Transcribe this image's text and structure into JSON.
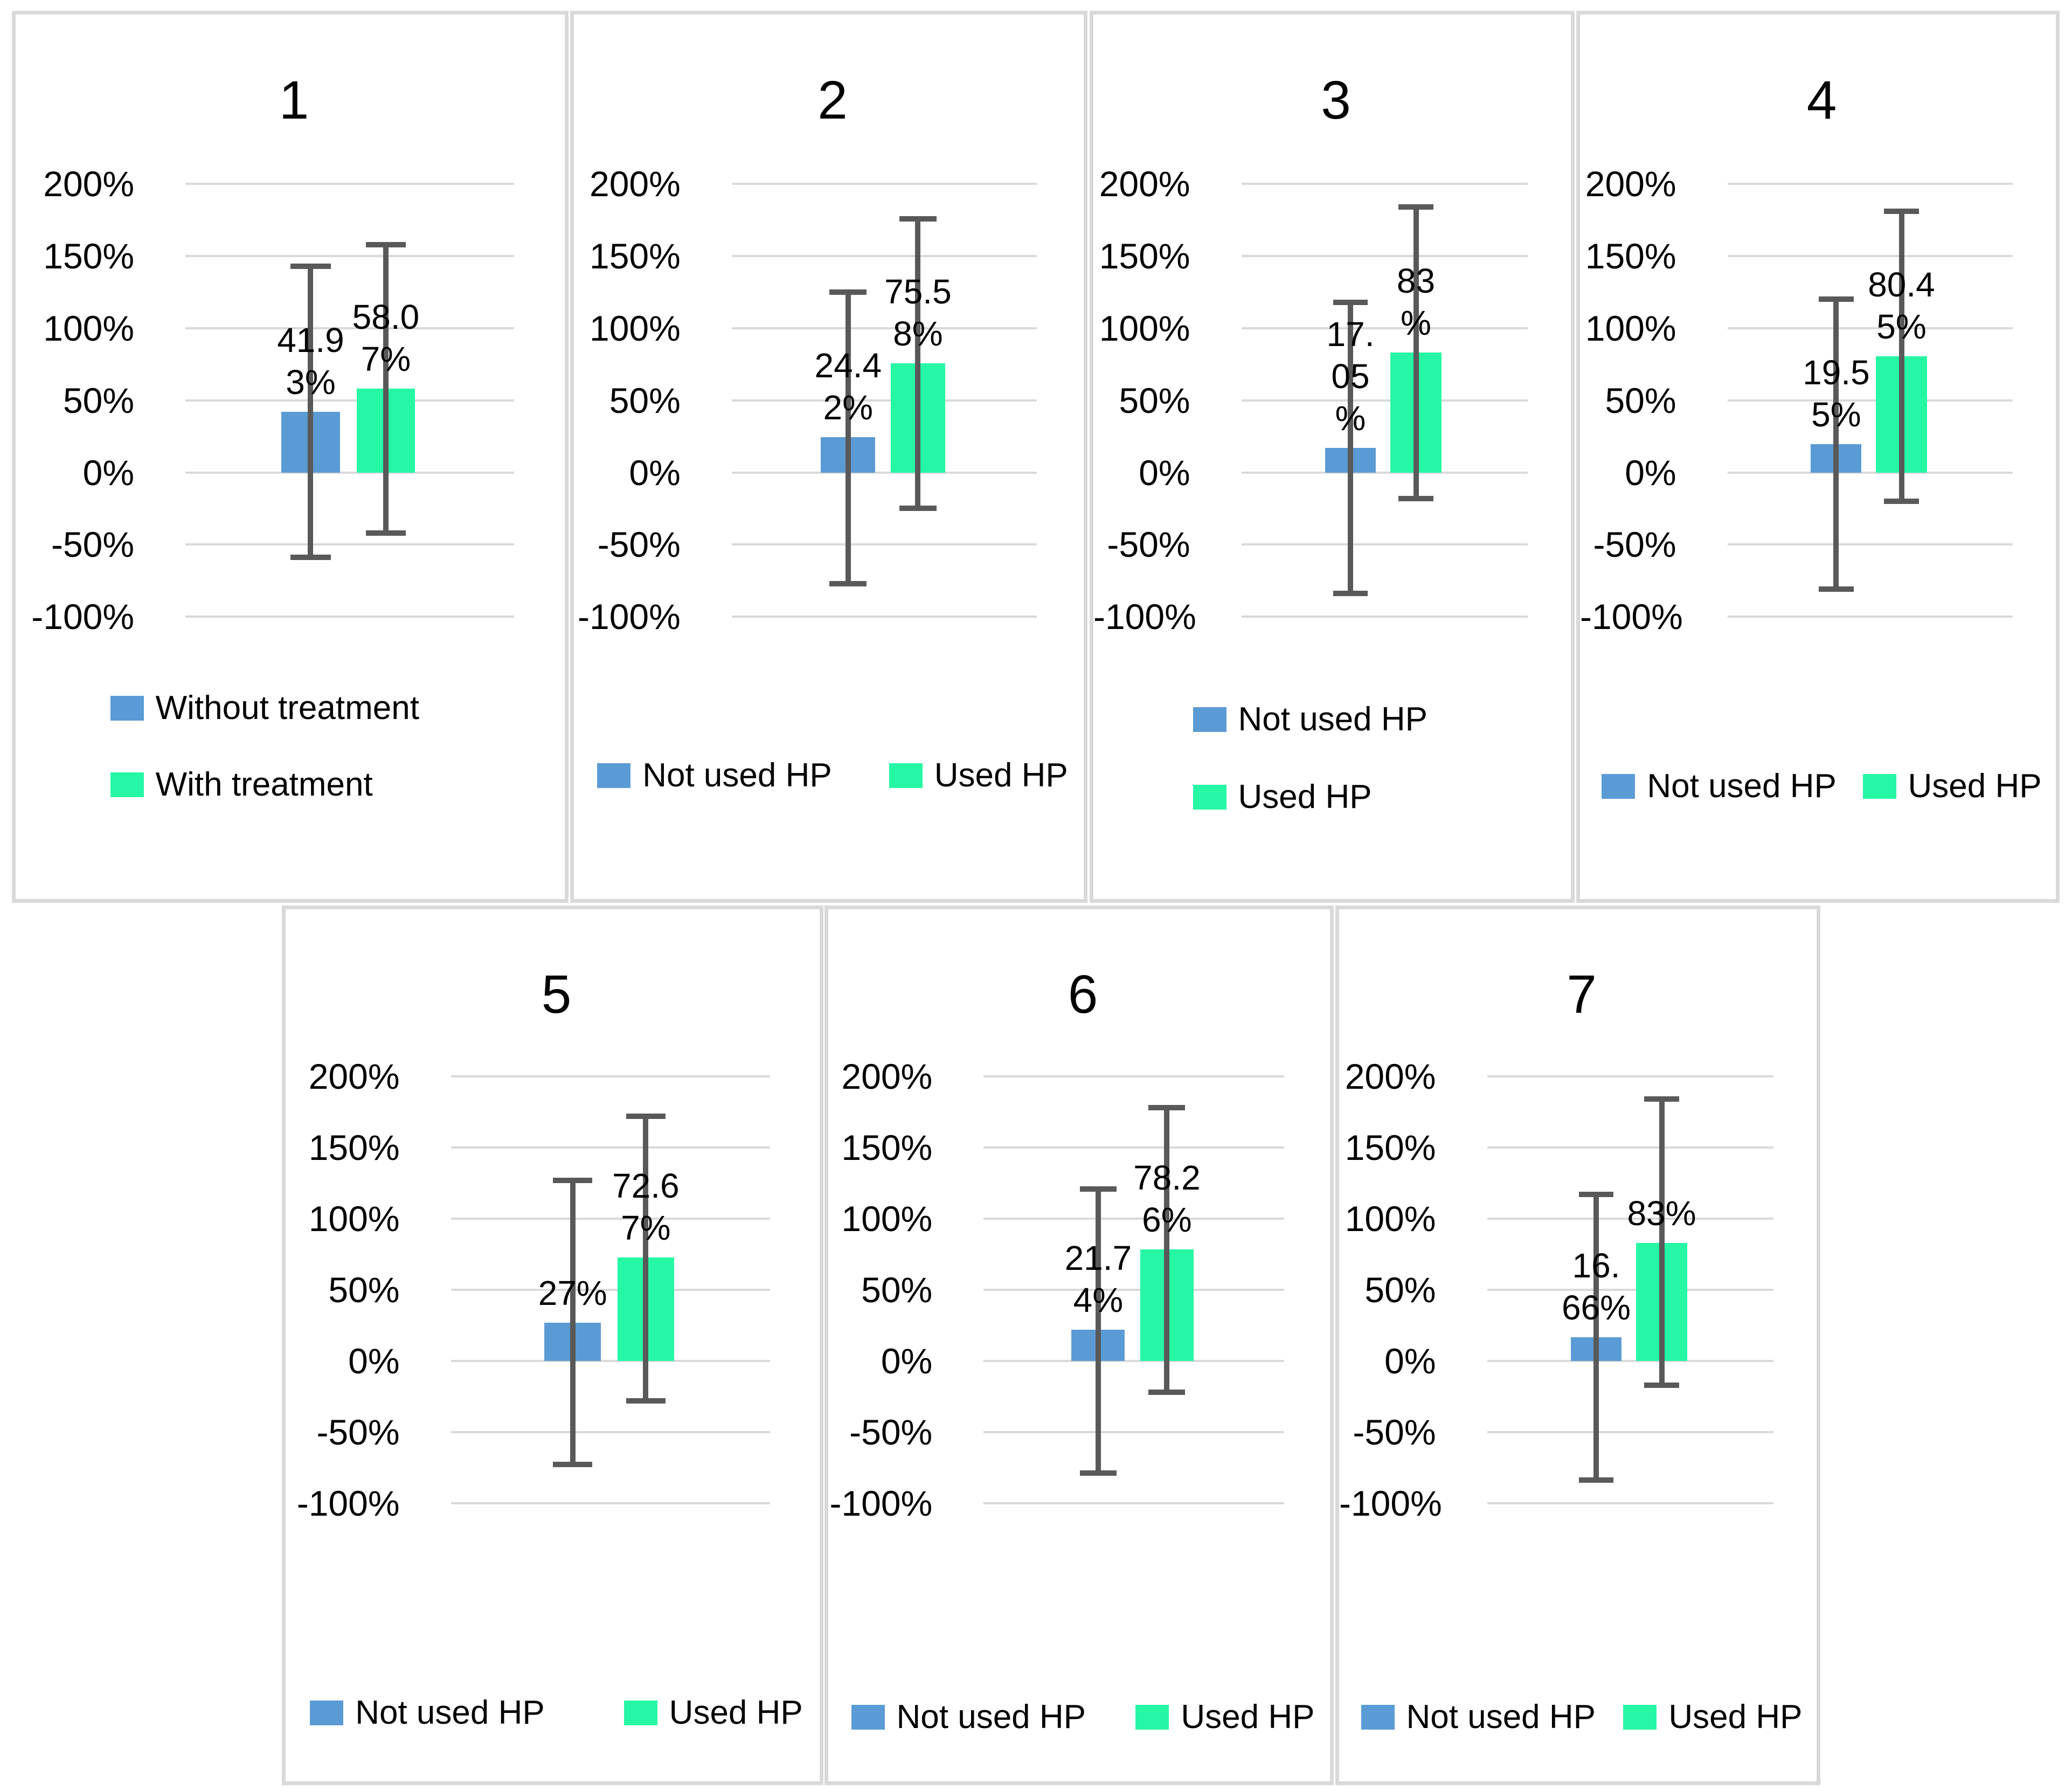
{
  "figure_title": "Seven bar chart panels comparing outcome percentages with error bars",
  "colors": {
    "bar_blue": "#5B9BD5",
    "bar_green": "#26F7A5",
    "error_bar": "#595959",
    "gridline": "#D9D9D9",
    "panel_border": "#D9D9D9",
    "panel_background": "#FFFFFF",
    "text": "#000000"
  },
  "chart_data": [
    {
      "type": "bar",
      "title": "1",
      "ylim": [
        -100,
        200
      ],
      "ytick_labels": [
        "200%",
        "150%",
        "100%",
        "50%",
        "0%",
        "-50%",
        "-100%"
      ],
      "ytick_values": [
        200,
        150,
        100,
        50,
        0,
        -50,
        -100
      ],
      "grid": true,
      "legend_position": "bottom-stacked",
      "bars": [
        {
          "name": "Without treatment",
          "value_pct": 41.93,
          "label_lines": [
            "41.9",
            "3%"
          ],
          "color_key": "bar_blue",
          "error_low_pct": -59,
          "error_high_pct": 143
        },
        {
          "name": "With treatment",
          "value_pct": 58.07,
          "label_lines": [
            "58.0",
            "7%"
          ],
          "color_key": "bar_green",
          "error_low_pct": -42,
          "error_high_pct": 158
        }
      ],
      "legend": [
        {
          "label": "Without treatment",
          "color_key": "bar_blue"
        },
        {
          "label": "With treatment",
          "color_key": "bar_green"
        }
      ]
    },
    {
      "type": "bar",
      "title": "2",
      "ylim": [
        -100,
        200
      ],
      "ytick_labels": [
        "200%",
        "150%",
        "100%",
        "50%",
        "0%",
        "-50%",
        "-100%"
      ],
      "ytick_values": [
        200,
        150,
        100,
        50,
        0,
        -50,
        -100
      ],
      "grid": true,
      "legend_position": "bottom-row",
      "bars": [
        {
          "name": "Not used HP",
          "value_pct": 24.42,
          "label_lines": [
            "24.4",
            "2%"
          ],
          "color_key": "bar_blue",
          "error_low_pct": -77,
          "error_high_pct": 125
        },
        {
          "name": "Used HP",
          "value_pct": 75.58,
          "label_lines": [
            "75.5",
            "8%"
          ],
          "color_key": "bar_green",
          "error_low_pct": -25,
          "error_high_pct": 176
        }
      ],
      "legend": [
        {
          "label": "Not used HP",
          "color_key": "bar_blue"
        },
        {
          "label": "Used HP",
          "color_key": "bar_green"
        }
      ]
    },
    {
      "type": "bar",
      "title": "3",
      "ylim": [
        -100,
        200
      ],
      "ytick_labels": [
        "200%",
        "150%",
        "100%",
        "50%",
        "0%",
        "-50%",
        "-100%"
      ],
      "ytick_values": [
        200,
        150,
        100,
        50,
        0,
        -50,
        -100
      ],
      "grid": true,
      "legend_position": "bottom-stacked",
      "bars": [
        {
          "name": "Not used HP",
          "value_pct": 17.05,
          "label_lines": [
            "17.",
            "05",
            "%"
          ],
          "color_key": "bar_blue",
          "error_low_pct": -84,
          "error_high_pct": 118
        },
        {
          "name": "Used HP",
          "value_pct": 83,
          "label_lines": [
            "83",
            "%"
          ],
          "color_key": "bar_green",
          "error_low_pct": -18,
          "error_high_pct": 184
        }
      ],
      "legend": [
        {
          "label": "Not used HP",
          "color_key": "bar_blue"
        },
        {
          "label": "Used HP",
          "color_key": "bar_green"
        }
      ]
    },
    {
      "type": "bar",
      "title": "4",
      "ylim": [
        -100,
        200
      ],
      "ytick_labels": [
        "200%",
        "150%",
        "100%",
        "50%",
        "0%",
        "-50%",
        "-100%"
      ],
      "ytick_values": [
        200,
        150,
        100,
        50,
        0,
        -50,
        -100
      ],
      "grid": true,
      "legend_position": "bottom-row",
      "bars": [
        {
          "name": "Not used HP",
          "value_pct": 19.55,
          "label_lines": [
            "19.5",
            "5%"
          ],
          "color_key": "bar_blue",
          "error_low_pct": -81,
          "error_high_pct": 120
        },
        {
          "name": "Used HP",
          "value_pct": 80.45,
          "label_lines": [
            "80.4",
            "5%"
          ],
          "color_key": "bar_green",
          "error_low_pct": -20,
          "error_high_pct": 181
        }
      ],
      "legend": [
        {
          "label": "Not used HP",
          "color_key": "bar_blue"
        },
        {
          "label": "Used HP",
          "color_key": "bar_green"
        }
      ]
    },
    {
      "type": "bar",
      "title": "5",
      "ylim": [
        -100,
        200
      ],
      "ytick_labels": [
        "200%",
        "150%",
        "100%",
        "50%",
        "0%",
        "-50%",
        "-100%"
      ],
      "ytick_values": [
        200,
        150,
        100,
        50,
        0,
        -50,
        -100
      ],
      "grid": true,
      "legend_position": "bottom-row",
      "bars": [
        {
          "name": "Not used HP",
          "value_pct": 27,
          "label_lines": [
            "27%"
          ],
          "color_key": "bar_blue",
          "error_low_pct": -73,
          "error_high_pct": 127
        },
        {
          "name": "Used HP",
          "value_pct": 72.67,
          "label_lines": [
            "72.6",
            "7%"
          ],
          "color_key": "bar_green",
          "error_low_pct": -28,
          "error_high_pct": 172
        }
      ],
      "legend": [
        {
          "label": "Not used HP",
          "color_key": "bar_blue"
        },
        {
          "label": "Used HP",
          "color_key": "bar_green"
        }
      ]
    },
    {
      "type": "bar",
      "title": "6",
      "ylim": [
        -100,
        200
      ],
      "ytick_labels": [
        "200%",
        "150%",
        "100%",
        "50%",
        "0%",
        "-50%",
        "-100%"
      ],
      "ytick_values": [
        200,
        150,
        100,
        50,
        0,
        -50,
        -100
      ],
      "grid": true,
      "legend_position": "bottom-row",
      "bars": [
        {
          "name": "Not used HP",
          "value_pct": 21.74,
          "label_lines": [
            "21.7",
            "4%"
          ],
          "color_key": "bar_blue",
          "error_low_pct": -79,
          "error_high_pct": 121
        },
        {
          "name": "Used HP",
          "value_pct": 78.26,
          "label_lines": [
            "78.2",
            "6%"
          ],
          "color_key": "bar_green",
          "error_low_pct": -22,
          "error_high_pct": 178
        }
      ],
      "legend": [
        {
          "label": "Not used HP",
          "color_key": "bar_blue"
        },
        {
          "label": "Used HP",
          "color_key": "bar_green"
        }
      ]
    },
    {
      "type": "bar",
      "title": "7",
      "ylim": [
        -100,
        200
      ],
      "ytick_labels": [
        "200%",
        "150%",
        "100%",
        "50%",
        "0%",
        "-50%",
        "-100%"
      ],
      "ytick_values": [
        200,
        150,
        100,
        50,
        0,
        -50,
        -100
      ],
      "grid": true,
      "legend_position": "bottom-row",
      "bars": [
        {
          "name": "Not used HP",
          "value_pct": 16.66,
          "label_lines": [
            "16.",
            "66%"
          ],
          "color_key": "bar_blue",
          "error_low_pct": -84,
          "error_high_pct": 117
        },
        {
          "name": "Used HP",
          "value_pct": 83,
          "label_lines": [
            "83%"
          ],
          "color_key": "bar_green",
          "error_low_pct": -17,
          "error_high_pct": 184
        }
      ],
      "legend": [
        {
          "label": "Not used HP",
          "color_key": "bar_blue"
        },
        {
          "label": "Used HP",
          "color_key": "bar_green"
        }
      ]
    }
  ]
}
